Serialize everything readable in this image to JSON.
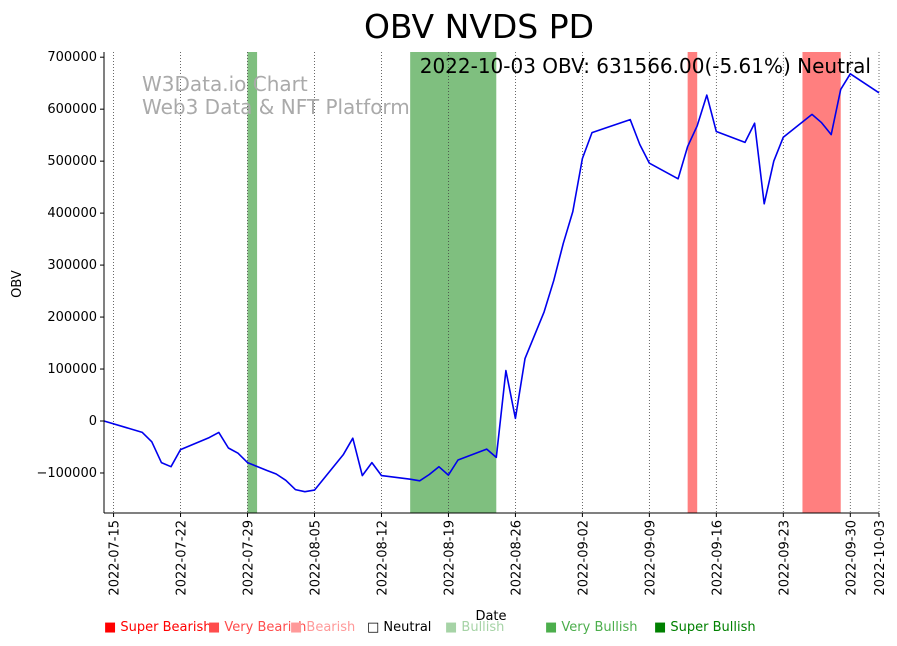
{
  "chart_data": {
    "type": "line",
    "title": "OBV NVDS PD",
    "annotation": "2022-10-03 OBV: 631566.00(-5.61%) Neutral",
    "watermark": [
      "W3Data.io Chart",
      "Web3 Data & NFT Platform"
    ],
    "xlabel": "Date",
    "ylabel": "OBV",
    "ylim": [
      -177000,
      710000
    ],
    "xlim": [
      "2022-07-14",
      "2022-10-03"
    ],
    "yticks": [
      -100000,
      0,
      100000,
      200000,
      300000,
      400000,
      500000,
      600000,
      700000
    ],
    "ytick_labels": [
      "−100000",
      "0",
      "100000",
      "200000",
      "300000",
      "400000",
      "500000",
      "600000",
      "700000"
    ],
    "xticks": [
      "2022-07-15",
      "2022-07-22",
      "2022-07-29",
      "2022-08-05",
      "2022-08-12",
      "2022-08-19",
      "2022-08-26",
      "2022-09-02",
      "2022-09-09",
      "2022-09-16",
      "2022-09-23",
      "2022-09-30",
      "2022-10-03"
    ],
    "series": [
      {
        "name": "OBV",
        "color": "#0000ee",
        "points": [
          [
            "2022-07-14",
            0
          ],
          [
            "2022-07-18",
            -22000
          ],
          [
            "2022-07-19",
            -40000
          ],
          [
            "2022-07-20",
            -80000
          ],
          [
            "2022-07-21",
            -88000
          ],
          [
            "2022-07-22",
            -55000
          ],
          [
            "2022-07-25",
            -32000
          ],
          [
            "2022-07-26",
            -22000
          ],
          [
            "2022-07-27",
            -52000
          ],
          [
            "2022-07-28",
            -62000
          ],
          [
            "2022-07-29",
            -80000
          ],
          [
            "2022-07-31",
            -95000
          ],
          [
            "2022-08-01",
            -102000
          ],
          [
            "2022-08-02",
            -114000
          ],
          [
            "2022-08-03",
            -132000
          ],
          [
            "2022-08-04",
            -136000
          ],
          [
            "2022-08-05",
            -133000
          ],
          [
            "2022-08-08",
            -65000
          ],
          [
            "2022-08-09",
            -33000
          ],
          [
            "2022-08-10",
            -105000
          ],
          [
            "2022-08-11",
            -80000
          ],
          [
            "2022-08-12",
            -105000
          ],
          [
            "2022-08-15",
            -112000
          ],
          [
            "2022-08-16",
            -115000
          ],
          [
            "2022-08-17",
            -103000
          ],
          [
            "2022-08-18",
            -88000
          ],
          [
            "2022-08-19",
            -104000
          ],
          [
            "2022-08-20",
            -75000
          ],
          [
            "2022-08-23",
            -54000
          ],
          [
            "2022-08-24",
            -70000
          ],
          [
            "2022-08-25",
            97000
          ],
          [
            "2022-08-26",
            5000
          ],
          [
            "2022-08-27",
            120000
          ],
          [
            "2022-08-29",
            210000
          ],
          [
            "2022-08-30",
            270000
          ],
          [
            "2022-08-31",
            342000
          ],
          [
            "2022-09-01",
            403000
          ],
          [
            "2022-09-02",
            505000
          ],
          [
            "2022-09-03",
            555000
          ],
          [
            "2022-09-07",
            580000
          ],
          [
            "2022-09-08",
            532000
          ],
          [
            "2022-09-09",
            496000
          ],
          [
            "2022-09-12",
            466000
          ],
          [
            "2022-09-13",
            528000
          ],
          [
            "2022-09-14",
            568000
          ],
          [
            "2022-09-15",
            627000
          ],
          [
            "2022-09-16",
            557000
          ],
          [
            "2022-09-19",
            536000
          ],
          [
            "2022-09-20",
            573000
          ],
          [
            "2022-09-21",
            418000
          ],
          [
            "2022-09-22",
            500000
          ],
          [
            "2022-09-23",
            546000
          ],
          [
            "2022-09-26",
            590000
          ],
          [
            "2022-09-27",
            574000
          ],
          [
            "2022-09-28",
            551000
          ],
          [
            "2022-09-29",
            638000
          ],
          [
            "2022-09-30",
            668000
          ],
          [
            "2022-10-03",
            631566
          ]
        ]
      }
    ],
    "shaded_regions": [
      {
        "start": "2022-07-29",
        "end": "2022-07-30",
        "signal": "Very Bullish",
        "color": "#7fbf7f"
      },
      {
        "start": "2022-08-15",
        "end": "2022-08-24",
        "signal": "Very Bullish",
        "color": "#7fbf7f"
      },
      {
        "start": "2022-09-13",
        "end": "2022-09-14",
        "signal": "Very Bearish",
        "color": "#ff7f7f"
      },
      {
        "start": "2022-09-25",
        "end": "2022-09-29",
        "signal": "Very Bearish",
        "color": "#ff7f7f"
      }
    ],
    "legend": [
      {
        "label": "■ Super Bearish",
        "color": "#ff0000"
      },
      {
        "label": "■ Very Bearish",
        "color": "#ff4c4c"
      },
      {
        "label": "■ Bearish",
        "color": "#ff9999"
      },
      {
        "label": "□ Neutral",
        "color": "#000000"
      },
      {
        "label": "■ Bullish",
        "color": "#a6d3a6"
      },
      {
        "label": "■ Very Bullish",
        "color": "#4cae4c"
      },
      {
        "label": "■ Super Bullish",
        "color": "#008000"
      }
    ]
  }
}
